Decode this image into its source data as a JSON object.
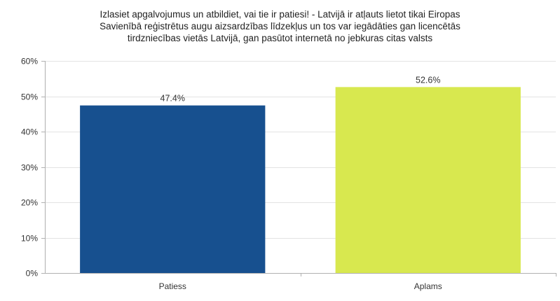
{
  "chart_data": {
    "type": "bar",
    "title_lines": [
      "Izlasiet apgalvojumus un atbildiet, vai tie ir patiesi! - Latvijā ir atļauts lietot tikai Eiropas",
      "Savienībā reģistrētus augu aizsardzības līdzekļus un tos var iegādāties gan licencētās",
      "tirdzniecības vietās Latvijā, gan pasūtot internetā no jebkuras citas valsts"
    ],
    "categories": [
      "Patiess",
      "Aplams"
    ],
    "values": [
      47.4,
      52.6
    ],
    "value_labels": [
      "47.4%",
      "52.6%"
    ],
    "colors": [
      "#17508f",
      "#d8e84f"
    ],
    "ylim": [
      0,
      60
    ],
    "yticks": [
      0,
      10,
      20,
      30,
      40,
      50,
      60
    ],
    "ytick_labels": [
      "0%",
      "10%",
      "20%",
      "30%",
      "40%",
      "50%",
      "60%"
    ],
    "xlabel": "",
    "ylabel": "",
    "grid": true,
    "legend": "none"
  }
}
